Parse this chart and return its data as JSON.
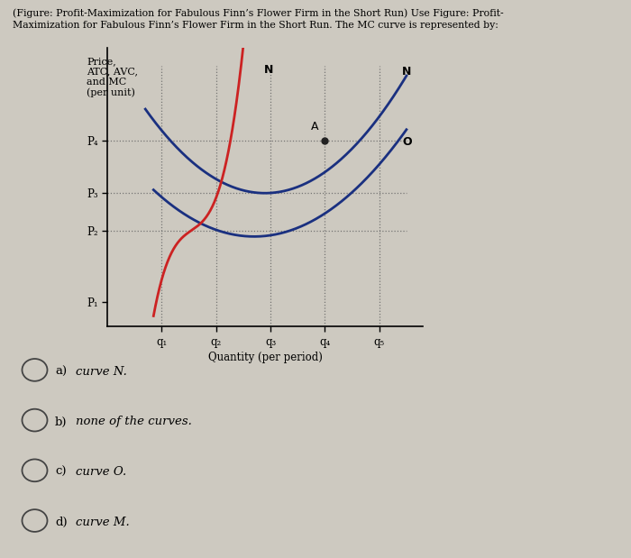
{
  "title_text": "(Figure: Profit-Maximization for Fabulous Finn’s Flower Firm in the Short Run) Use Figure: Profit-\nMaximization for Fabulous Finn’s Flower Firm in the Short Run. The MC curve is represented by:",
  "ylabel": "Price,\nATC, AVC,\nand MC\n(per unit)",
  "xlabel": "Quantity (per period)",
  "bg_color": "#cdc9c0",
  "plot_bg_color": "#cdc9c0",
  "curve_red_color": "#cc2222",
  "curve_blue_upper_color": "#1a3080",
  "curve_blue_lower_color": "#1a3080",
  "dotted_color": "#666666",
  "price_labels": [
    "P₁",
    "P₂",
    "P₃",
    "P₄"
  ],
  "qty_labels": [
    "q₁",
    "q₂",
    "q₃",
    "q₄",
    "q₅"
  ],
  "p1": 0.4,
  "p2": 1.55,
  "p3": 2.15,
  "p4": 3.0,
  "answer_options": [
    {
      "label": "a)",
      "text": "curve N."
    },
    {
      "label": "b)",
      "text": "none of the curves."
    },
    {
      "label": "c)",
      "text": "curve O."
    },
    {
      "label": "d)",
      "text": "curve M."
    }
  ]
}
